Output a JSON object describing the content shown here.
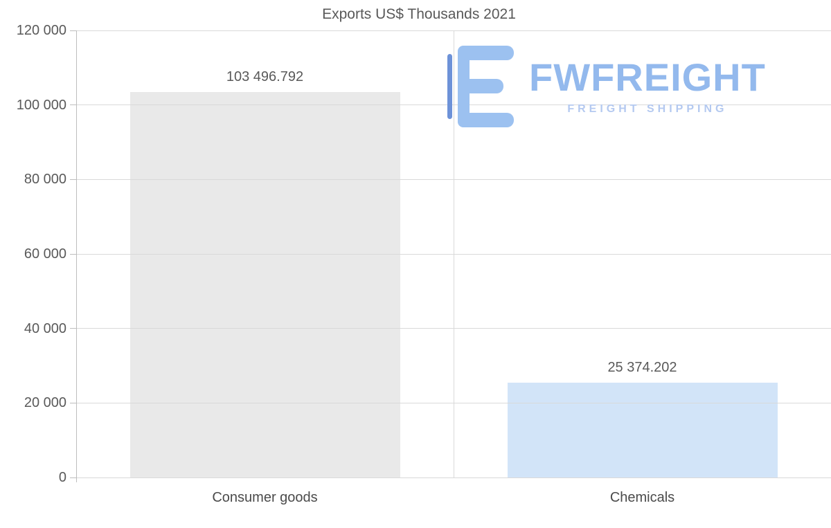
{
  "chart_data": {
    "type": "bar",
    "title": "Exports US$ Thousands 2021",
    "categories": [
      "Consumer goods",
      "Chemicals"
    ],
    "values": [
      103496.792,
      25374.202
    ],
    "value_labels": [
      "103 496.792",
      "25 374.202"
    ],
    "ylim": [
      0,
      120000
    ],
    "ytick_interval": 20000,
    "ytick_labels": [
      "0",
      "20 000",
      "40 000",
      "60 000",
      "80 000",
      "100 000",
      "120 000"
    ],
    "grid": "horizontal",
    "legend": "none",
    "bar_colors": [
      "#e9e9e9",
      "#d2e4f8"
    ]
  },
  "watermark": {
    "brand": "FWFREIGHT",
    "tagline": "FREIGHT SHIPPING"
  },
  "style": {
    "text_color": "#595959",
    "grid_color": "#d9d9d9",
    "axis_color": "#bdbdbd",
    "brand_color": "#93b9ed",
    "tagline_color": "#b4c9f0",
    "icon_color": "#9cc1f0",
    "icon_accent_color": "#6d92d8"
  }
}
